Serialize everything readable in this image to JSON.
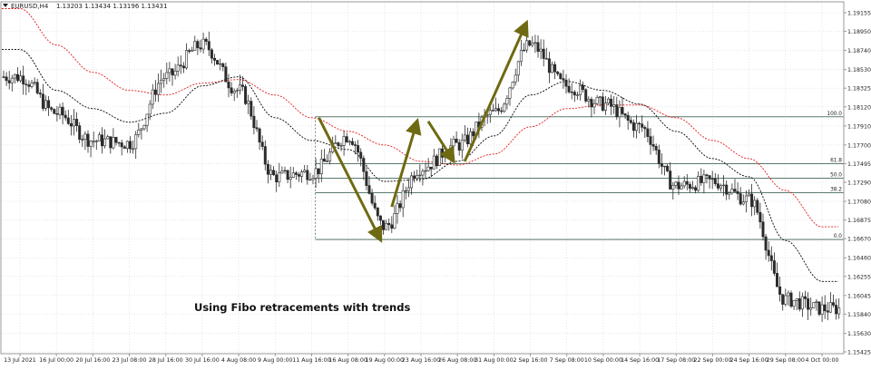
{
  "header": {
    "symbol": "EURUSD,H4",
    "ohlc": "1.13203 1.13434 1.13196 1.13431"
  },
  "chart_data": {
    "type": "candlestick",
    "title": "EURUSD,H4 1.13203 1.13434 1.13196 1.13431",
    "annotation": "Using Fibo retracements with trends",
    "y_ticks": [
      "1.19155",
      "1.18950",
      "1.18740",
      "1.18530",
      "1.18325",
      "1.18120",
      "1.17910",
      "1.17700",
      "1.17495",
      "1.17290",
      "1.17080",
      "1.16875",
      "1.16670",
      "1.16460",
      "1.16255",
      "1.16045",
      "1.15840",
      "1.15630",
      "1.15425"
    ],
    "ylim": [
      1.15425,
      1.19155
    ],
    "x_ticks": [
      "13 Jul 2021",
      "16 Jul 00:00",
      "20 Jul 16:00",
      "23 Jul 08:00",
      "28 Jul 16:00",
      "30 Jul 16:00",
      "4 Aug 08:00",
      "9 Aug 00:00",
      "11 Aug 16:00",
      "16 Aug 08:00",
      "19 Aug 00:00",
      "23 Aug 16:00",
      "26 Aug 08:00",
      "31 Aug 00:00",
      "2 Sep 16:00",
      "7 Sep 08:00",
      "10 Sep 00:00",
      "14 Sep 16:00",
      "17 Sep 08:00",
      "22 Sep 00:00",
      "24 Sep 16:00",
      "29 Sep 08:00",
      "4 Oct 00:00"
    ],
    "fibo_levels": [
      {
        "label": "100.0",
        "price": 1.1801
      },
      {
        "label": "61.8",
        "price": 1.17495
      },
      {
        "label": "50.0",
        "price": 1.17335
      },
      {
        "label": "38.2",
        "price": 1.17175
      },
      {
        "label": "0.0",
        "price": 1.1666
      }
    ],
    "fibo_x_ticks": [
      "11 Aug 16:00",
      "4 Oct 00:00"
    ],
    "close_path": [
      {
        "x": "13 Jul 2021",
        "price": 1.1845
      },
      {
        "x": "16 Jul 00:00",
        "price": 1.1805
      },
      {
        "x": "20 Jul 16:00",
        "price": 1.1775
      },
      {
        "x": "23 Jul 08:00",
        "price": 1.1772
      },
      {
        "x": "28 Jul 16:00",
        "price": 1.1845
      },
      {
        "x": "30 Jul 16:00",
        "price": 1.188
      },
      {
        "x": "4 Aug 08:00",
        "price": 1.183
      },
      {
        "x": "9 Aug 00:00",
        "price": 1.1735
      },
      {
        "x": "11 Aug 16:00",
        "price": 1.174
      },
      {
        "x": "16 Aug 08:00",
        "price": 1.178
      },
      {
        "x": "19 Aug 00:00",
        "price": 1.168
      },
      {
        "x": "23 Aug 16:00",
        "price": 1.1745
      },
      {
        "x": "26 Aug 08:00",
        "price": 1.177
      },
      {
        "x": "31 Aug 00:00",
        "price": 1.1805
      },
      {
        "x": "2 Sep 16:00",
        "price": 1.188
      },
      {
        "x": "7 Sep 08:00",
        "price": 1.1835
      },
      {
        "x": "10 Sep 00:00",
        "price": 1.1815
      },
      {
        "x": "14 Sep 16:00",
        "price": 1.179
      },
      {
        "x": "17 Sep 08:00",
        "price": 1.1725
      },
      {
        "x": "22 Sep 00:00",
        "price": 1.173
      },
      {
        "x": "24 Sep 16:00",
        "price": 1.171
      },
      {
        "x": "29 Sep 08:00",
        "price": 1.16
      },
      {
        "x": "4 Oct 00:00",
        "price": 1.159
      }
    ],
    "ma_fast": [
      {
        "x": "13 Jul 2021",
        "price": 1.1875
      },
      {
        "x": "16 Jul 00:00",
        "price": 1.183
      },
      {
        "x": "20 Jul 16:00",
        "price": 1.181
      },
      {
        "x": "23 Jul 08:00",
        "price": 1.1795
      },
      {
        "x": "28 Jul 16:00",
        "price": 1.1805
      },
      {
        "x": "30 Jul 16:00",
        "price": 1.1835
      },
      {
        "x": "4 Aug 08:00",
        "price": 1.1845
      },
      {
        "x": "9 Aug 00:00",
        "price": 1.18
      },
      {
        "x": "11 Aug 16:00",
        "price": 1.1775
      },
      {
        "x": "16 Aug 08:00",
        "price": 1.1765
      },
      {
        "x": "19 Aug 00:00",
        "price": 1.173
      },
      {
        "x": "23 Aug 16:00",
        "price": 1.1732
      },
      {
        "x": "26 Aug 08:00",
        "price": 1.1752
      },
      {
        "x": "31 Aug 00:00",
        "price": 1.178
      },
      {
        "x": "2 Sep 16:00",
        "price": 1.1825
      },
      {
        "x": "7 Sep 08:00",
        "price": 1.184
      },
      {
        "x": "10 Sep 00:00",
        "price": 1.183
      },
      {
        "x": "14 Sep 16:00",
        "price": 1.1815
      },
      {
        "x": "17 Sep 08:00",
        "price": 1.1785
      },
      {
        "x": "22 Sep 00:00",
        "price": 1.1755
      },
      {
        "x": "24 Sep 16:00",
        "price": 1.1735
      },
      {
        "x": "29 Sep 08:00",
        "price": 1.1665
      },
      {
        "x": "4 Oct 00:00",
        "price": 1.162
      }
    ],
    "ma_slow": [
      {
        "x": "13 Jul 2021",
        "price": 1.192
      },
      {
        "x": "16 Jul 00:00",
        "price": 1.188
      },
      {
        "x": "20 Jul 16:00",
        "price": 1.185
      },
      {
        "x": "23 Jul 08:00",
        "price": 1.183
      },
      {
        "x": "28 Jul 16:00",
        "price": 1.1825
      },
      {
        "x": "30 Jul 16:00",
        "price": 1.1838
      },
      {
        "x": "4 Aug 08:00",
        "price": 1.1842
      },
      {
        "x": "9 Aug 00:00",
        "price": 1.1825
      },
      {
        "x": "11 Aug 16:00",
        "price": 1.18
      },
      {
        "x": "16 Aug 08:00",
        "price": 1.1785
      },
      {
        "x": "19 Aug 00:00",
        "price": 1.177
      },
      {
        "x": "23 Aug 16:00",
        "price": 1.1752
      },
      {
        "x": "26 Aug 08:00",
        "price": 1.1748
      },
      {
        "x": "31 Aug 00:00",
        "price": 1.176
      },
      {
        "x": "2 Sep 16:00",
        "price": 1.179
      },
      {
        "x": "7 Sep 08:00",
        "price": 1.181
      },
      {
        "x": "10 Sep 00:00",
        "price": 1.1814
      },
      {
        "x": "14 Sep 16:00",
        "price": 1.1814
      },
      {
        "x": "17 Sep 08:00",
        "price": 1.18
      },
      {
        "x": "22 Sep 00:00",
        "price": 1.1775
      },
      {
        "x": "24 Sep 16:00",
        "price": 1.1755
      },
      {
        "x": "29 Sep 08:00",
        "price": 1.172
      },
      {
        "x": "4 Oct 00:00",
        "price": 1.168
      }
    ],
    "trend_arrows": [
      {
        "from": {
          "x": "11 Aug 16:00",
          "price": 1.18
        },
        "to": {
          "x": "19 Aug 00:00",
          "price": 1.1665
        }
      },
      {
        "from": {
          "x": "19 Aug 00:00",
          "price": 1.1702
        },
        "to": {
          "x": "23 Aug 16:00",
          "price": 1.1797
        }
      },
      {
        "from": {
          "x": "23 Aug 16:00",
          "price": 1.1796
        },
        "to": {
          "x": "26 Aug 08:00",
          "price": 1.1752
        }
      },
      {
        "from": {
          "x": "26 Aug 08:00",
          "price": 1.1752
        },
        "to": {
          "x": "2 Sep 16:00",
          "price": 1.1905
        }
      }
    ],
    "colors": {
      "background": "#ffffff",
      "grid": "#d7d7d7",
      "axis": "#9a9a9a",
      "text": "#222222",
      "candle": "#2b2b2b",
      "fibo": "#5a7a6a",
      "ma_fast": "#000000",
      "ma_slow": "#e31a1c",
      "arrow": "#6e6a12"
    }
  }
}
